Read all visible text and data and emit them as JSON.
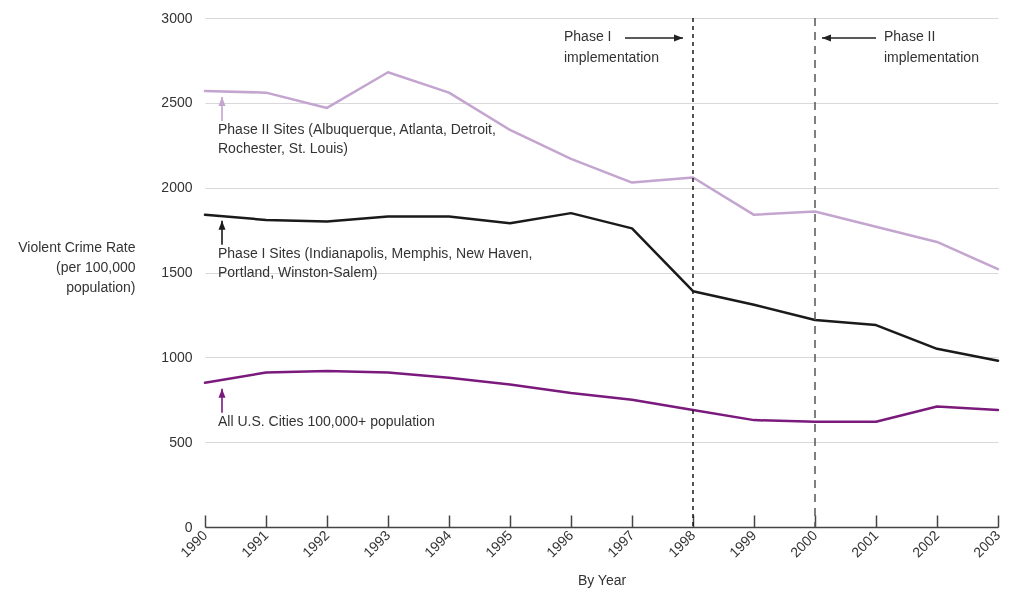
{
  "chart_data": {
    "type": "line",
    "xlabel": "By Year",
    "ylabel": "Violent Crime Rate (per 100,000 population)",
    "x": [
      1990,
      1991,
      1992,
      1993,
      1994,
      1995,
      1996,
      1997,
      1998,
      1999,
      2000,
      2001,
      2002,
      2003
    ],
    "xlim": [
      1990,
      2003
    ],
    "xticks": [
      1990,
      1991,
      1992,
      1993,
      1994,
      1995,
      1996,
      1997,
      1998,
      1999,
      2000,
      2001,
      2002,
      2003
    ],
    "ylim": [
      0,
      3000
    ],
    "yticks": [
      0,
      500,
      1000,
      1500,
      2000,
      2500,
      3000
    ],
    "grid": "y",
    "legend": "left",
    "line_style": "solid",
    "marker": "none",
    "series": [
      {
        "name": "Phase II Sites (Albuquerque, Atlanta, Detroit, Rochester, St. Louis)",
        "color": "#c4a5d0",
        "values": [
          2570,
          2560,
          2470,
          2680,
          2560,
          2340,
          2170,
          2030,
          2060,
          1840,
          1860,
          1770,
          1680,
          1520
        ]
      },
      {
        "name": "Phase I Sites (Indianapolis, Memphis, New Haven, Portland, Winston-Salem)",
        "color": "#1a1a1a",
        "values": [
          1840,
          1810,
          1800,
          1830,
          1830,
          1790,
          1850,
          1760,
          1390,
          1310,
          1220,
          1190,
          1050,
          980
        ]
      },
      {
        "name": "All U.S. Cities 100,000+ population",
        "color": "#7a1a7c",
        "values": [
          850,
          910,
          920,
          910,
          880,
          840,
          790,
          750,
          690,
          630,
          620,
          620,
          710,
          690
        ]
      }
    ],
    "ref_lines": [
      {
        "axis": "x",
        "value": 1998,
        "label": "Phase I implementation",
        "line_style": "dotted",
        "color": "#1a1a1a"
      },
      {
        "axis": "x",
        "value": 2000,
        "label": "Phase II implementation",
        "line_style": "dashed",
        "color": "#555555"
      }
    ]
  }
}
